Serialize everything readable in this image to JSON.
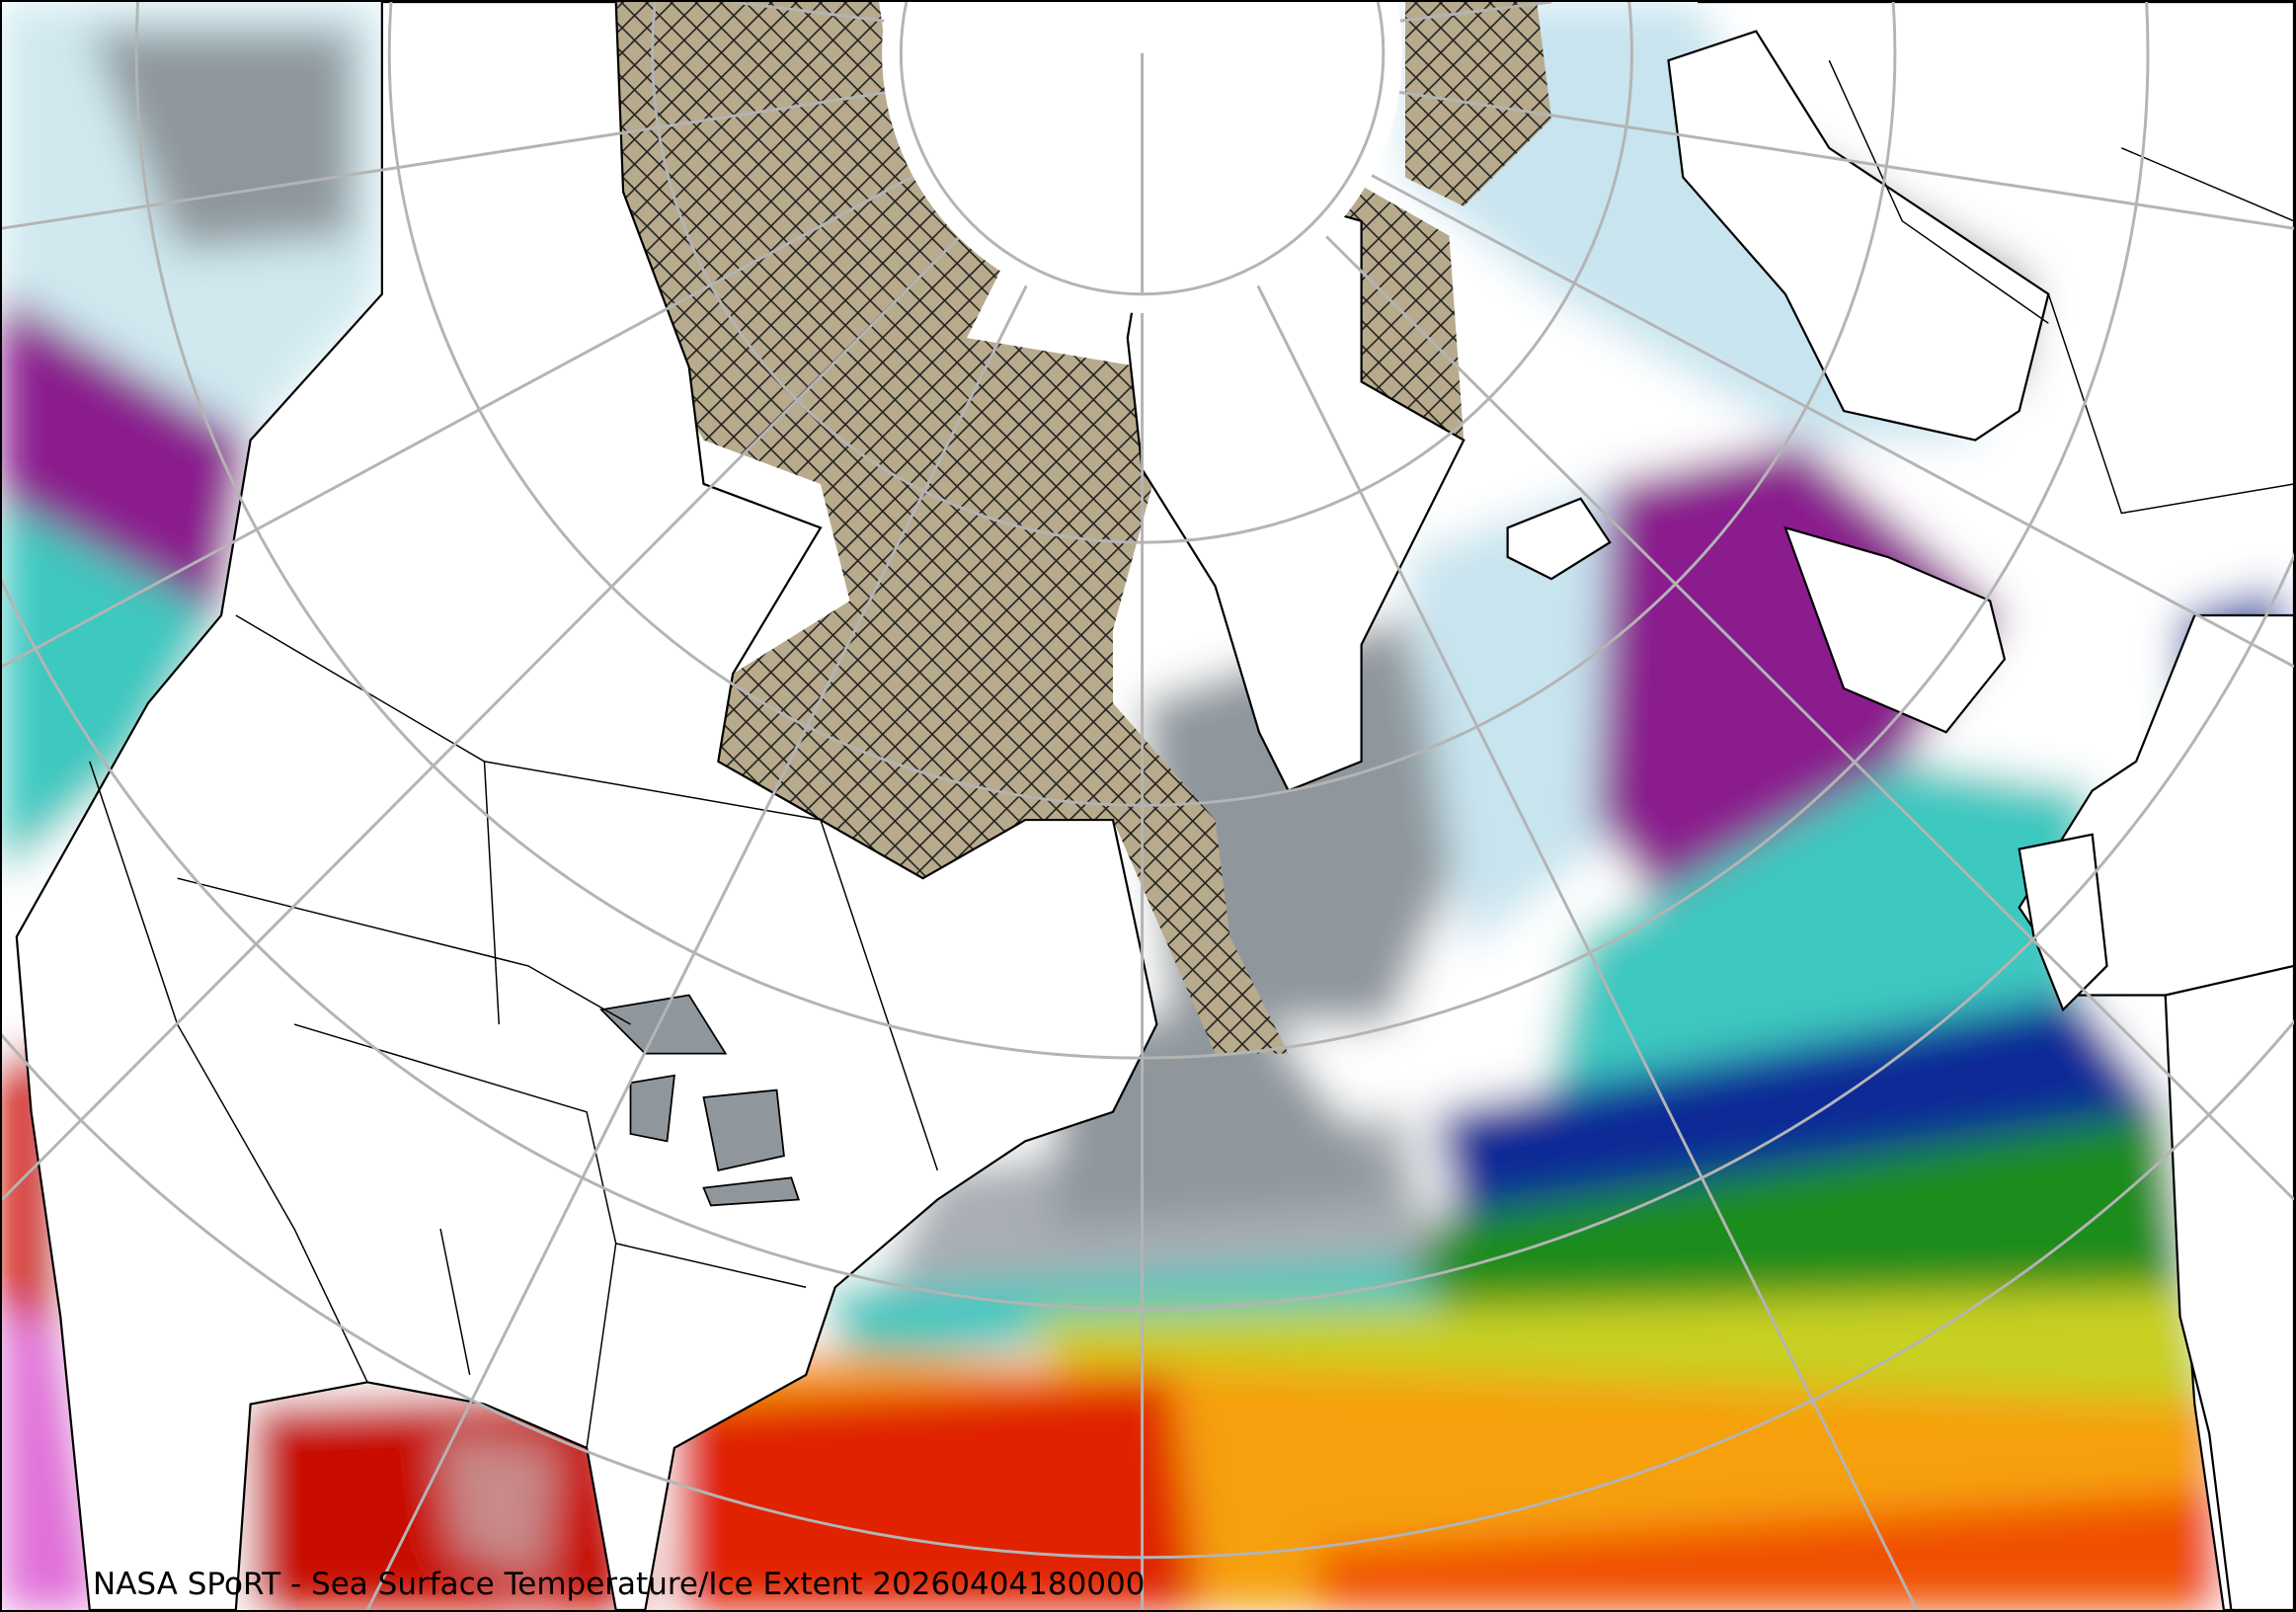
{
  "caption": "NASA SPoRT - Sea Surface Temperature/Ice Extent 20260404180000",
  "map": {
    "projection": "north polar stereographic",
    "layers": [
      "sea surface temperature",
      "sea ice extent (hatched)",
      "coastlines",
      "political boundaries",
      "graticule"
    ],
    "colors": {
      "land": "#ffffff",
      "sea_ice": "#b8aa8c",
      "very_cold": "#c8ecef",
      "cold_gray": "#8c949a",
      "purple": "#8a1a8e",
      "cyan": "#3cc8c0",
      "blue": "#102a96",
      "green": "#1a8c1a",
      "yellow": "#f0e010",
      "orange": "#f89010",
      "red": "#d01000",
      "graticule": "#b4b4b4"
    }
  }
}
